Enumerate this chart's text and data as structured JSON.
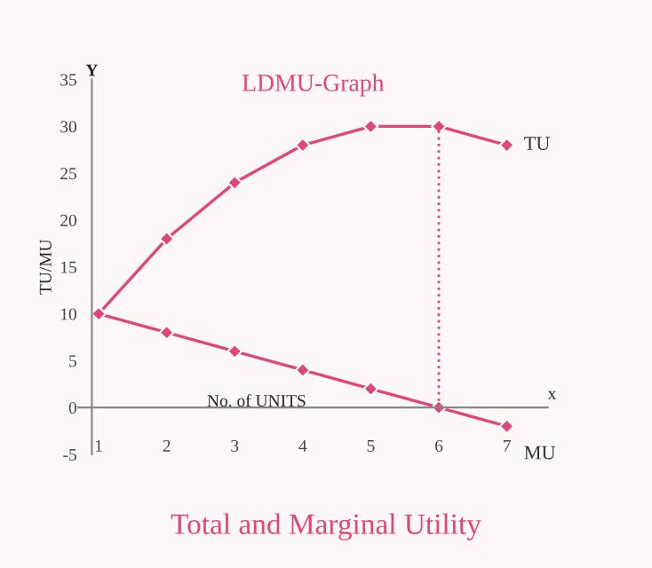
{
  "chart_data": {
    "type": "line",
    "title": "LDMU-Graph",
    "xlabel": "No. of UNITS",
    "ylabel": "TU/MU",
    "x": [
      1,
      2,
      3,
      4,
      5,
      6,
      7
    ],
    "series": [
      {
        "name": "TU",
        "color": "#e0457b",
        "values": [
          10,
          18,
          24,
          28,
          30,
          30,
          28
        ]
      },
      {
        "name": "MU",
        "color": "#e0457b",
        "values": [
          10,
          8,
          6,
          4,
          2,
          0,
          -2
        ]
      }
    ],
    "xlim": [
      0.7,
      7.6
    ],
    "xticks": [
      1,
      2,
      3,
      4,
      5,
      6,
      7
    ],
    "ylim": [
      -5,
      35
    ],
    "yticks": [
      -5,
      0,
      5,
      10,
      15,
      20,
      25,
      30,
      35
    ],
    "ref_lines": [
      {
        "axis": "x",
        "value": 6,
        "color": "#e0457b",
        "line_style": "dotted"
      }
    ],
    "annotations": [
      "Y",
      "x",
      "Total and Marginal Utility"
    ],
    "marker": "diamond",
    "line_style": "solid",
    "grid": false,
    "legend": false
  }
}
